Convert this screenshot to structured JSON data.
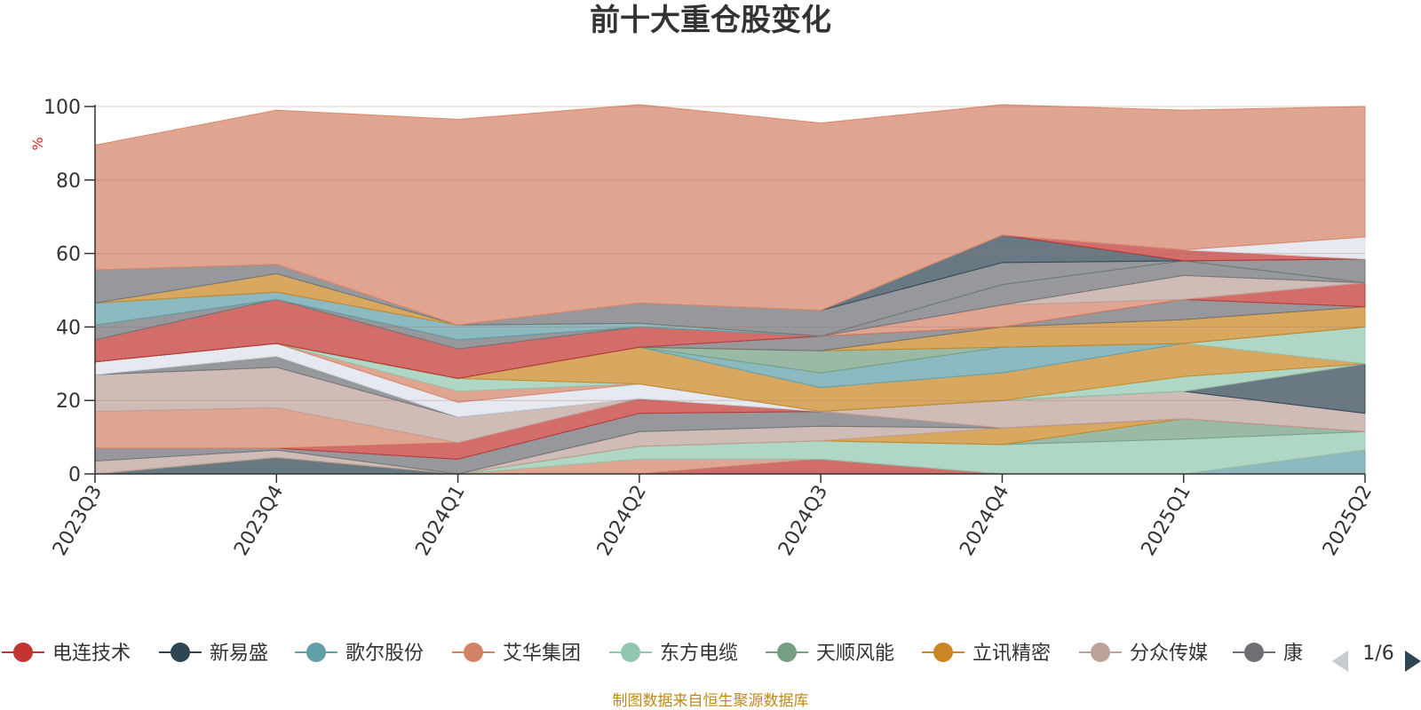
{
  "source_note": "制图数据来自恒生聚源数据库",
  "legend": {
    "page": "1/6",
    "visible_items": [
      {
        "name": "电连技术",
        "color": "#c23531"
      },
      {
        "name": "新易盛",
        "color": "#2f4554"
      },
      {
        "name": "歌尔股份",
        "color": "#61a0a8"
      },
      {
        "name": "艾华集团",
        "color": "#d48265"
      },
      {
        "name": "东方电缆",
        "color": "#91c7ae"
      },
      {
        "name": "天顺风能",
        "color": "#749f83"
      },
      {
        "name": "立讯精密",
        "color": "#ca8622"
      },
      {
        "name": "分众传媒",
        "color": "#bda29a"
      },
      {
        "name": "康",
        "color": "#6e7074"
      }
    ]
  },
  "chart_data": {
    "type": "area",
    "stacked": true,
    "title": "前十大重仓股变化",
    "ylabel": "%",
    "ylim": [
      0,
      100
    ],
    "yticks": [
      0,
      20,
      40,
      60,
      80,
      100
    ],
    "grid": true,
    "legend_position": "bottom",
    "categories": [
      "2023Q3",
      "2023Q4",
      "2024Q1",
      "2024Q2",
      "2024Q3",
      "2024Q4",
      "2025Q1",
      "2025Q2"
    ],
    "series": [
      {
        "name": "电连技术",
        "color": "#c23531",
        "values": [
          0,
          0,
          0,
          0,
          4,
          0,
          0,
          0
        ]
      },
      {
        "name": "新易盛",
        "color": "#2f4554",
        "values": [
          0,
          4.5,
          0,
          0,
          0,
          0,
          0,
          0
        ]
      },
      {
        "name": "歌尔股份",
        "color": "#61a0a8",
        "values": [
          0,
          0,
          0,
          0,
          0,
          0,
          0,
          6.5
        ]
      },
      {
        "name": "艾华集团",
        "color": "#d48265",
        "values": [
          0,
          0,
          0,
          4,
          0,
          0,
          0,
          0
        ]
      },
      {
        "name": "东方电缆",
        "color": "#91c7ae",
        "values": [
          0,
          0,
          0,
          3.5,
          5,
          8,
          9.5,
          5
        ]
      },
      {
        "name": "天顺风能",
        "color": "#749f83",
        "values": [
          0,
          0,
          0,
          0,
          0,
          0,
          5.5,
          0
        ]
      },
      {
        "name": "立讯精密",
        "color": "#ca8622",
        "values": [
          0,
          0,
          0,
          0,
          0,
          4.5,
          0,
          0
        ]
      },
      {
        "name": "分众传媒",
        "color": "#bda29a",
        "values": [
          3.5,
          2,
          0,
          4,
          4,
          0,
          0,
          0
        ]
      },
      {
        "name": "康",
        "color": "#6e7074",
        "values": [
          3.5,
          0.5,
          4,
          5,
          4,
          0,
          0,
          0
        ]
      },
      {
        "name": "",
        "color": "#c23531",
        "values": [
          0,
          0,
          4.5,
          4,
          0,
          0,
          0,
          0
        ]
      },
      {
        "name": "",
        "color": "#d48265",
        "values": [
          10,
          11,
          0,
          0,
          0,
          0,
          0,
          0
        ]
      },
      {
        "name": "",
        "color": "#bda29a",
        "values": [
          10,
          11,
          7,
          0,
          0,
          7.5,
          7.5,
          5
        ]
      },
      {
        "name": "",
        "color": "#6e7074",
        "values": [
          0,
          3,
          0,
          0,
          0,
          0,
          0,
          0
        ]
      },
      {
        "name": "",
        "color": "#2f4554",
        "values": [
          0,
          0,
          0,
          0,
          0,
          0,
          0,
          13.5
        ]
      },
      {
        "name": "",
        "color": "#dde2ea",
        "values": [
          3.5,
          3.5,
          4,
          4,
          0,
          0,
          0,
          0
        ]
      },
      {
        "name": "",
        "color": "#d48265",
        "values": [
          0,
          0,
          3,
          0,
          0,
          0,
          0,
          0
        ]
      },
      {
        "name": "",
        "color": "#91c7ae",
        "values": [
          0,
          0,
          3.5,
          0,
          0,
          0,
          4,
          0
        ]
      },
      {
        "name": "",
        "color": "#ca8622",
        "values": [
          0,
          0,
          0,
          10,
          6.5,
          7.5,
          9,
          0
        ]
      },
      {
        "name": "",
        "color": "#91c7ae",
        "values": [
          0,
          0,
          0,
          0,
          0,
          0,
          0,
          10
        ]
      },
      {
        "name": "",
        "color": "#61a0a8",
        "values": [
          0,
          0,
          0,
          0,
          4,
          7,
          0,
          0
        ]
      },
      {
        "name": "",
        "color": "#749f83",
        "values": [
          0,
          0,
          0,
          0,
          6,
          0,
          0,
          0
        ]
      },
      {
        "name": "",
        "color": "#ca8622",
        "values": [
          0,
          0,
          0,
          0,
          0,
          5.5,
          6.5,
          5.5
        ]
      },
      {
        "name": "",
        "color": "#6e7074",
        "values": [
          0,
          0,
          0,
          0,
          4,
          0,
          5.5,
          0
        ]
      },
      {
        "name": "",
        "color": "#c23531",
        "values": [
          6,
          12,
          8,
          5.5,
          0,
          0,
          0,
          6.5
        ]
      },
      {
        "name": "",
        "color": "#d48265",
        "values": [
          0,
          0,
          0,
          0,
          0,
          6,
          0,
          0
        ]
      },
      {
        "name": "",
        "color": "#bda29a",
        "values": [
          0,
          0,
          0,
          0,
          0,
          0,
          6.5,
          0
        ]
      },
      {
        "name": "",
        "color": "#6e7074",
        "values": [
          4,
          0,
          2.5,
          0,
          0,
          5.5,
          4,
          0
        ]
      },
      {
        "name": "",
        "color": "#61a0a8",
        "values": [
          6,
          2,
          4,
          1,
          0,
          0,
          0,
          0
        ]
      },
      {
        "name": "",
        "color": "#ca8622",
        "values": [
          0,
          5,
          0,
          0,
          0,
          0,
          0,
          0
        ]
      },
      {
        "name": "",
        "color": "#91c7ae",
        "values": [
          0,
          0,
          0,
          0,
          0,
          0,
          0,
          0
        ]
      },
      {
        "name": "",
        "color": "#6e7074",
        "values": [
          9,
          2.5,
          0,
          5.5,
          7,
          6,
          0,
          6.5
        ]
      },
      {
        "name": "",
        "color": "#2f4554",
        "values": [
          0,
          0,
          0,
          0,
          0,
          7.5,
          0,
          0
        ]
      },
      {
        "name": "",
        "color": "#c23531",
        "values": [
          0,
          0,
          0,
          0,
          0,
          0,
          3,
          0
        ]
      },
      {
        "name": "",
        "color": "#dde2ea",
        "values": [
          0,
          0,
          0,
          0,
          0,
          0,
          0,
          6
        ]
      },
      {
        "name": "",
        "color": "#d48265",
        "values": [
          34,
          42,
          56,
          54,
          51,
          35.5,
          38,
          35.5
        ]
      }
    ]
  }
}
